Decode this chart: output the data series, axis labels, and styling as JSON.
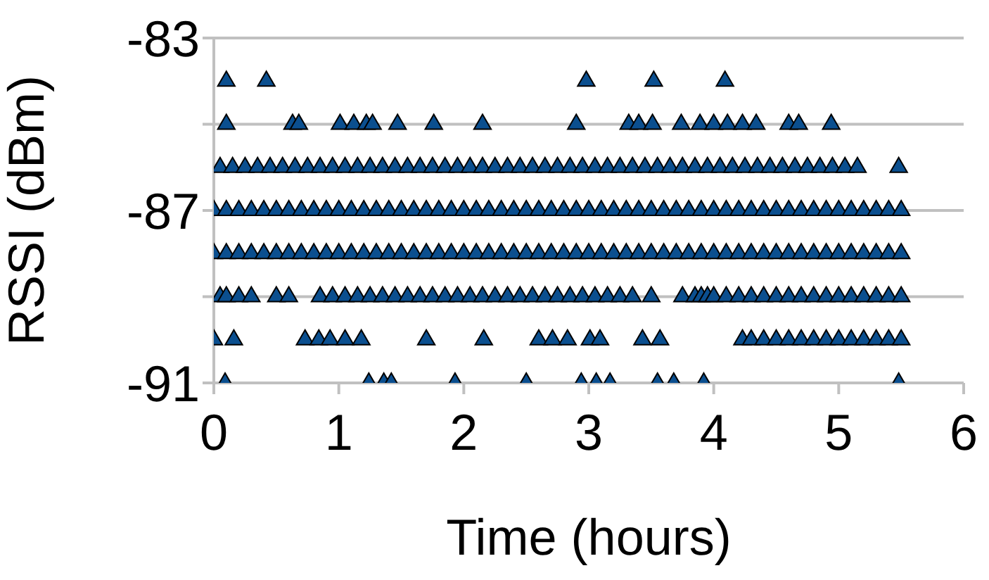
{
  "chart_data": {
    "type": "scatter",
    "xlabel": "Time (hours)",
    "ylabel": "RSSI (dBm)",
    "xlim": [
      0,
      6
    ],
    "xticks": [
      0,
      1,
      2,
      3,
      4,
      5,
      6
    ],
    "ylim": [
      -91,
      -83
    ],
    "yticks": [
      -91,
      {
        "value": -89,
        "label": null
      },
      -87,
      {
        "value": -85,
        "label": null
      },
      -83
    ],
    "grid": "y",
    "legend": false,
    "marker": "triangle",
    "series": [
      {
        "color": "#0b4f8f",
        "x": [
          0.1,
          0.42,
          2.98,
          3.52,
          4.09
        ],
        "values": [
          -84,
          -84,
          -84,
          -84,
          -84
        ]
      },
      {
        "color": "#0b4f8f",
        "x": [
          0.1,
          0.63,
          0.68,
          1.01,
          1.12,
          1.22,
          1.27,
          1.47,
          1.76,
          2.15,
          2.9,
          3.32,
          3.4,
          3.51,
          3.74,
          3.89,
          4.0,
          4.11,
          4.23,
          4.34,
          4.6,
          4.68,
          4.94
        ],
        "values": [
          -85,
          -85,
          -85,
          -85,
          -85,
          -85,
          -85,
          -85,
          -85,
          -85,
          -85,
          -85,
          -85,
          -85,
          -85,
          -85,
          -85,
          -85,
          -85,
          -85,
          -85,
          -85,
          -85
        ]
      },
      {
        "color": "#0b4f8f",
        "x": [
          0.05,
          0.15,
          0.25,
          0.35,
          0.45,
          0.55,
          0.65,
          0.75,
          0.85,
          0.95,
          1.05,
          1.15,
          1.25,
          1.35,
          1.45,
          1.55,
          1.65,
          1.75,
          1.85,
          1.95,
          2.05,
          2.15,
          2.25,
          2.35,
          2.45,
          2.55,
          2.65,
          2.75,
          2.85,
          2.95,
          3.05,
          3.15,
          3.25,
          3.35,
          3.45,
          3.55,
          3.65,
          3.75,
          3.85,
          3.95,
          4.05,
          4.15,
          4.25,
          4.35,
          4.45,
          4.55,
          4.65,
          4.75,
          4.85,
          4.95,
          5.05,
          5.15,
          5.48
        ],
        "values": [
          -86,
          -86,
          -86,
          -86,
          -86,
          -86,
          -86,
          -86,
          -86,
          -86,
          -86,
          -86,
          -86,
          -86,
          -86,
          -86,
          -86,
          -86,
          -86,
          -86,
          -86,
          -86,
          -86,
          -86,
          -86,
          -86,
          -86,
          -86,
          -86,
          -86,
          -86,
          -86,
          -86,
          -86,
          -86,
          -86,
          -86,
          -86,
          -86,
          -86,
          -86,
          -86,
          -86,
          -86,
          -86,
          -86,
          -86,
          -86,
          -86,
          -86,
          -86,
          -86,
          -86
        ]
      },
      {
        "color": "#0b4f8f",
        "x": [
          0,
          0.1,
          0.2,
          0.3,
          0.4,
          0.5,
          0.6,
          0.7,
          0.8,
          0.9,
          1.0,
          1.1,
          1.2,
          1.3,
          1.4,
          1.5,
          1.6,
          1.7,
          1.8,
          1.9,
          2.0,
          2.1,
          2.2,
          2.3,
          2.4,
          2.5,
          2.6,
          2.7,
          2.8,
          2.9,
          3.0,
          3.1,
          3.2,
          3.3,
          3.4,
          3.5,
          3.6,
          3.7,
          3.8,
          3.9,
          4.0,
          4.1,
          4.2,
          4.3,
          4.4,
          4.5,
          4.6,
          4.7,
          4.8,
          4.9,
          5.0,
          5.1,
          5.2,
          5.3,
          5.4,
          5.5
        ],
        "values": [
          -87,
          -87,
          -87,
          -87,
          -87,
          -87,
          -87,
          -87,
          -87,
          -87,
          -87,
          -87,
          -87,
          -87,
          -87,
          -87,
          -87,
          -87,
          -87,
          -87,
          -87,
          -87,
          -87,
          -87,
          -87,
          -87,
          -87,
          -87,
          -87,
          -87,
          -87,
          -87,
          -87,
          -87,
          -87,
          -87,
          -87,
          -87,
          -87,
          -87,
          -87,
          -87,
          -87,
          -87,
          -87,
          -87,
          -87,
          -87,
          -87,
          -87,
          -87,
          -87,
          -87,
          -87,
          -87,
          -87
        ]
      },
      {
        "color": "#0b4f8f",
        "x": [
          0,
          0.1,
          0.2,
          0.3,
          0.4,
          0.5,
          0.6,
          0.7,
          0.8,
          0.9,
          1.0,
          1.1,
          1.2,
          1.3,
          1.4,
          1.5,
          1.6,
          1.7,
          1.8,
          1.9,
          2.0,
          2.1,
          2.2,
          2.3,
          2.4,
          2.5,
          2.6,
          2.7,
          2.8,
          2.9,
          3.0,
          3.1,
          3.2,
          3.3,
          3.4,
          3.5,
          3.6,
          3.7,
          3.8,
          3.9,
          4.0,
          4.1,
          4.2,
          4.3,
          4.4,
          4.5,
          4.6,
          4.7,
          4.8,
          4.9,
          5.0,
          5.1,
          5.2,
          5.3,
          5.4,
          5.5
        ],
        "values": [
          -88,
          -88,
          -88,
          -88,
          -88,
          -88,
          -88,
          -88,
          -88,
          -88,
          -88,
          -88,
          -88,
          -88,
          -88,
          -88,
          -88,
          -88,
          -88,
          -88,
          -88,
          -88,
          -88,
          -88,
          -88,
          -88,
          -88,
          -88,
          -88,
          -88,
          -88,
          -88,
          -88,
          -88,
          -88,
          -88,
          -88,
          -88,
          -88,
          -88,
          -88,
          -88,
          -88,
          -88,
          -88,
          -88,
          -88,
          -88,
          -88,
          -88,
          -88,
          -88,
          -88,
          -88,
          -88,
          -88
        ]
      },
      {
        "color": "#0b4f8f",
        "x": [
          0.05,
          0.1,
          0.2,
          0.3,
          0.5,
          0.6,
          0.85,
          0.95,
          1.05,
          1.15,
          1.25,
          1.35,
          1.45,
          1.55,
          1.65,
          1.75,
          1.85,
          1.95,
          2.05,
          2.15,
          2.25,
          2.35,
          2.45,
          2.55,
          2.65,
          2.75,
          2.85,
          2.95,
          3.05,
          3.15,
          3.25,
          3.35,
          3.5,
          3.75,
          3.85,
          3.9,
          3.95,
          4.0,
          4.1,
          4.2,
          4.3,
          4.4,
          4.5,
          4.6,
          4.7,
          4.8,
          4.9,
          5.0,
          5.1,
          5.2,
          5.3,
          5.4,
          5.5
        ],
        "values": [
          -89,
          -89,
          -89,
          -89,
          -89,
          -89,
          -89,
          -89,
          -89,
          -89,
          -89,
          -89,
          -89,
          -89,
          -89,
          -89,
          -89,
          -89,
          -89,
          -89,
          -89,
          -89,
          -89,
          -89,
          -89,
          -89,
          -89,
          -89,
          -89,
          -89,
          -89,
          -89,
          -89,
          -89,
          -89,
          -89,
          -89,
          -89,
          -89,
          -89,
          -89,
          -89,
          -89,
          -89,
          -89,
          -89,
          -89,
          -89,
          -89,
          -89,
          -89,
          -89,
          -89
        ]
      },
      {
        "color": "#0b4f8f",
        "x": [
          0,
          0.16,
          0.73,
          0.84,
          0.93,
          1.05,
          1.18,
          1.7,
          2.16,
          2.6,
          2.71,
          2.83,
          3.01,
          3.09,
          3.43,
          3.57,
          4.23,
          4.3,
          4.4,
          4.5,
          4.6,
          4.7,
          4.8,
          4.9,
          5.0,
          5.1,
          5.2,
          5.3,
          5.4,
          5.5
        ],
        "values": [
          -90,
          -90,
          -90,
          -90,
          -90,
          -90,
          -90,
          -90,
          -90,
          -90,
          -90,
          -90,
          -90,
          -90,
          -90,
          -90,
          -90,
          -90,
          -90,
          -90,
          -90,
          -90,
          -90,
          -90,
          -90,
          -90,
          -90,
          -90,
          -90,
          -90
        ]
      },
      {
        "color": "#0b4f8f",
        "x": [
          0.09,
          1.24,
          1.36,
          1.42,
          1.93,
          2.5,
          2.94,
          3.06,
          3.17,
          3.55,
          3.68,
          3.92,
          5.48
        ],
        "values": [
          -91,
          -91,
          -91,
          -91,
          -91,
          -91,
          -91,
          -91,
          -91,
          -91,
          -91,
          -91,
          -91
        ]
      }
    ]
  }
}
